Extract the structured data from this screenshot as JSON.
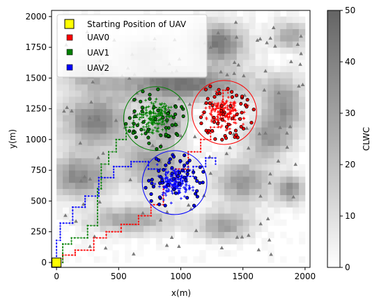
{
  "chart_data": {
    "type": "scatter",
    "xlabel": "x(m)",
    "ylabel": "y(m)",
    "xlim": [
      -40,
      2040
    ],
    "ylim": [
      -40,
      2050
    ],
    "x_ticks": [
      0,
      500,
      1000,
      1500,
      2000
    ],
    "y_ticks": [
      0,
      250,
      500,
      750,
      1000,
      1250,
      1500,
      1750,
      2000
    ],
    "colorbar": {
      "label": "CLWC",
      "range": [
        0,
        50
      ],
      "ticks": [
        0,
        10,
        20,
        30,
        40,
        50
      ]
    },
    "background_field": {
      "cmap": "Greys",
      "blobs": [
        {
          "x": 1000,
          "y": 1450,
          "sx": 380,
          "sy": 90,
          "v": 45
        },
        {
          "x": 320,
          "y": 1150,
          "sx": 200,
          "sy": 150,
          "v": 40
        },
        {
          "x": 1300,
          "y": 1780,
          "sx": 160,
          "sy": 120,
          "v": 42
        },
        {
          "x": 1820,
          "y": 1280,
          "sx": 120,
          "sy": 150,
          "v": 35
        },
        {
          "x": 1500,
          "y": 650,
          "sx": 160,
          "sy": 130,
          "v": 32
        },
        {
          "x": 1350,
          "y": 300,
          "sx": 150,
          "sy": 80,
          "v": 30
        },
        {
          "x": 600,
          "y": 350,
          "sx": 250,
          "sy": 80,
          "v": 30
        },
        {
          "x": 180,
          "y": 700,
          "sx": 170,
          "sy": 120,
          "v": 38
        },
        {
          "x": 780,
          "y": 800,
          "sx": 170,
          "sy": 130,
          "v": 35
        },
        {
          "x": 1700,
          "y": 1000,
          "sx": 130,
          "sy": 110,
          "v": 30
        },
        {
          "x": 720,
          "y": 1700,
          "sx": 140,
          "sy": 90,
          "v": 28
        },
        {
          "x": 1880,
          "y": 1850,
          "sx": 100,
          "sy": 80,
          "v": 30
        },
        {
          "x": 900,
          "y": 1150,
          "sx": 100,
          "sy": 100,
          "v": 35
        },
        {
          "x": 250,
          "y": 1550,
          "sx": 150,
          "sy": 80,
          "v": 25
        },
        {
          "x": 1880,
          "y": 600,
          "sx": 80,
          "sy": 80,
          "v": 35
        }
      ]
    },
    "legend_position": "upper-left",
    "legend": {
      "start": "Starting Position of UAV",
      "uav0": "UAV0",
      "uav1": "UAV1",
      "uav2": "UAV2"
    },
    "start_position": {
      "x": 0,
      "y": 0
    },
    "series": [
      {
        "name": "UAV0",
        "color": "#ff0000",
        "circle": {
          "cx": 1350,
          "cy": 1220,
          "r": 260
        },
        "path": [
          [
            0,
            0
          ],
          [
            50,
            0
          ],
          [
            50,
            60
          ],
          [
            150,
            60
          ],
          [
            150,
            100
          ],
          [
            300,
            100
          ],
          [
            300,
            200
          ],
          [
            400,
            200
          ],
          [
            400,
            250
          ],
          [
            520,
            250
          ],
          [
            520,
            310
          ],
          [
            660,
            310
          ],
          [
            660,
            380
          ],
          [
            760,
            380
          ],
          [
            760,
            470
          ],
          [
            860,
            470
          ],
          [
            860,
            620
          ],
          [
            960,
            620
          ],
          [
            960,
            760
          ],
          [
            1060,
            760
          ],
          [
            1060,
            900
          ],
          [
            1160,
            900
          ],
          [
            1160,
            1000
          ],
          [
            1240,
            1000
          ],
          [
            1240,
            1100
          ],
          [
            1300,
            1100
          ],
          [
            1300,
            1280
          ],
          [
            1340,
            1280
          ],
          [
            1340,
            1400
          ],
          [
            1380,
            1400
          ],
          [
            1380,
            1380
          ]
        ]
      },
      {
        "name": "UAV1",
        "color": "#008000",
        "circle": {
          "cx": 800,
          "cy": 1170,
          "r": 260
        },
        "path": [
          [
            0,
            0
          ],
          [
            50,
            0
          ],
          [
            50,
            150
          ],
          [
            120,
            150
          ],
          [
            120,
            200
          ],
          [
            250,
            200
          ],
          [
            250,
            300
          ],
          [
            330,
            300
          ],
          [
            330,
            600
          ],
          [
            360,
            600
          ],
          [
            360,
            800
          ],
          [
            420,
            800
          ],
          [
            420,
            900
          ],
          [
            480,
            900
          ],
          [
            480,
            1000
          ],
          [
            560,
            1000
          ],
          [
            560,
            1100
          ],
          [
            620,
            1100
          ],
          [
            620,
            1180
          ],
          [
            700,
            1180
          ],
          [
            700,
            1220
          ],
          [
            780,
            1220
          ],
          [
            780,
            1260
          ],
          [
            850,
            1260
          ],
          [
            850,
            1210
          ]
        ]
      },
      {
        "name": "UAV2",
        "color": "#0000ff",
        "circle": {
          "cx": 950,
          "cy": 650,
          "r": 260
        },
        "path": [
          [
            0,
            0
          ],
          [
            0,
            180
          ],
          [
            30,
            180
          ],
          [
            30,
            320
          ],
          [
            130,
            320
          ],
          [
            130,
            450
          ],
          [
            230,
            450
          ],
          [
            230,
            540
          ],
          [
            340,
            540
          ],
          [
            340,
            690
          ],
          [
            460,
            690
          ],
          [
            460,
            780
          ],
          [
            600,
            780
          ],
          [
            600,
            820
          ],
          [
            740,
            820
          ],
          [
            740,
            760
          ],
          [
            880,
            760
          ],
          [
            880,
            660
          ],
          [
            960,
            660
          ],
          [
            960,
            620
          ],
          [
            1000,
            620
          ],
          [
            1000,
            700
          ],
          [
            1100,
            700
          ],
          [
            1100,
            780
          ],
          [
            1200,
            780
          ],
          [
            1200,
            850
          ],
          [
            1280,
            850
          ],
          [
            1280,
            800
          ]
        ]
      }
    ]
  }
}
